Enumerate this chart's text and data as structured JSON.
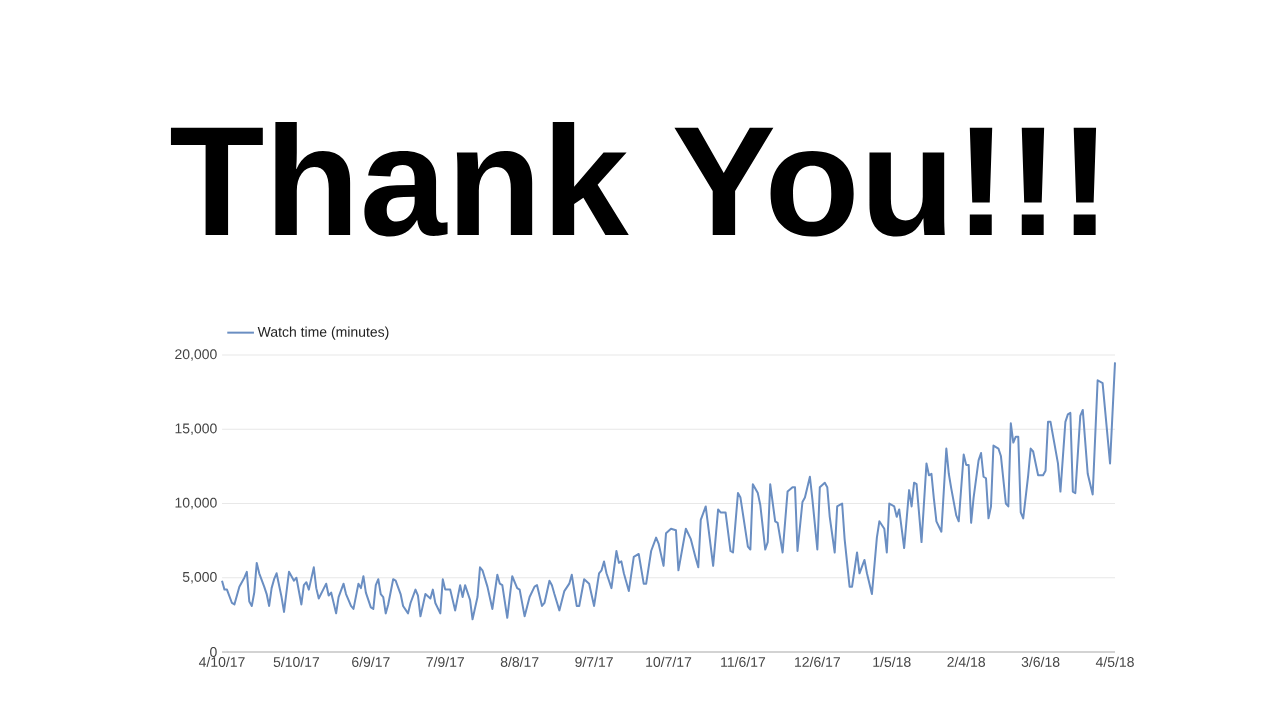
{
  "chart_data": {
    "type": "line",
    "title": "Thank You!!!",
    "xlim": [
      "2017-04-10",
      "2018-04-05"
    ],
    "xticks": [
      {
        "value": "2017-04-10",
        "label": "4/10/17"
      },
      {
        "value": "2017-05-10",
        "label": "5/10/17"
      },
      {
        "value": "2017-06-09",
        "label": "6/9/17"
      },
      {
        "value": "2017-07-09",
        "label": "7/9/17"
      },
      {
        "value": "2017-08-08",
        "label": "8/8/17"
      },
      {
        "value": "2017-09-07",
        "label": "9/7/17"
      },
      {
        "value": "2017-10-07",
        "label": "10/7/17"
      },
      {
        "value": "2017-11-06",
        "label": "11/6/17"
      },
      {
        "value": "2017-12-06",
        "label": "12/6/17"
      },
      {
        "value": "2018-01-05",
        "label": "1/5/18"
      },
      {
        "value": "2018-02-04",
        "label": "2/4/18"
      },
      {
        "value": "2018-03-06",
        "label": "3/6/18"
      },
      {
        "value": "2018-04-05",
        "label": "4/5/18"
      }
    ],
    "ylim": [
      0,
      20000
    ],
    "yticks": [
      0,
      {
        "value": 5000,
        "label": "5,000"
      },
      {
        "value": 10000,
        "label": "10,000"
      },
      {
        "value": 15000,
        "label": "15,000"
      },
      {
        "value": 20000,
        "label": "20,000"
      }
    ],
    "grid": "y",
    "legend": "top left",
    "x": [
      "2017-04-10",
      "2017-04-11",
      "2017-04-12",
      "2017-04-14",
      "2017-04-15",
      "2017-04-17",
      "2017-04-19",
      "2017-04-20",
      "2017-04-21",
      "2017-04-22",
      "2017-04-23",
      "2017-04-24",
      "2017-04-25",
      "2017-04-27",
      "2017-04-28",
      "2017-04-29",
      "2017-04-30",
      "2017-05-01",
      "2017-05-02",
      "2017-05-04",
      "2017-05-05",
      "2017-05-07",
      "2017-05-09",
      "2017-05-10",
      "2017-05-12",
      "2017-05-13",
      "2017-05-14",
      "2017-05-15",
      "2017-05-17",
      "2017-05-18",
      "2017-05-19",
      "2017-05-22",
      "2017-05-23",
      "2017-05-24",
      "2017-05-26",
      "2017-05-27",
      "2017-05-29",
      "2017-05-30",
      "2017-06-01",
      "2017-06-02",
      "2017-06-04",
      "2017-06-05",
      "2017-06-06",
      "2017-06-07",
      "2017-06-09",
      "2017-06-10",
      "2017-06-11",
      "2017-06-12",
      "2017-06-13",
      "2017-06-14",
      "2017-06-15",
      "2017-06-16",
      "2017-06-18",
      "2017-06-19",
      "2017-06-21",
      "2017-06-22",
      "2017-06-24",
      "2017-06-25",
      "2017-06-27",
      "2017-06-28",
      "2017-06-29",
      "2017-07-01",
      "2017-07-03",
      "2017-07-04",
      "2017-07-05",
      "2017-07-07",
      "2017-07-08",
      "2017-07-09",
      "2017-07-11",
      "2017-07-13",
      "2017-07-15",
      "2017-07-16",
      "2017-07-17",
      "2017-07-19",
      "2017-07-20",
      "2017-07-22",
      "2017-07-23",
      "2017-07-24",
      "2017-07-26",
      "2017-07-28",
      "2017-07-30",
      "2017-07-31",
      "2017-08-01",
      "2017-08-03",
      "2017-08-05",
      "2017-08-07",
      "2017-08-08",
      "2017-08-10",
      "2017-08-12",
      "2017-08-14",
      "2017-08-15",
      "2017-08-17",
      "2017-08-18",
      "2017-08-20",
      "2017-08-21",
      "2017-08-22",
      "2017-08-24",
      "2017-08-26",
      "2017-08-28",
      "2017-08-29",
      "2017-08-31",
      "2017-09-01",
      "2017-09-03",
      "2017-09-05",
      "2017-09-07",
      "2017-09-09",
      "2017-09-10",
      "2017-09-11",
      "2017-09-12",
      "2017-09-14",
      "2017-09-16",
      "2017-09-17",
      "2017-09-18",
      "2017-09-19",
      "2017-09-21",
      "2017-09-23",
      "2017-09-25",
      "2017-09-27",
      "2017-09-28",
      "2017-09-30",
      "2017-10-02",
      "2017-10-03",
      "2017-10-05",
      "2017-10-06",
      "2017-10-08",
      "2017-10-10",
      "2017-10-11",
      "2017-10-14",
      "2017-10-16",
      "2017-10-18",
      "2017-10-19",
      "2017-10-20",
      "2017-10-22",
      "2017-10-25",
      "2017-10-27",
      "2017-10-28",
      "2017-10-30",
      "2017-11-01",
      "2017-11-02",
      "2017-11-04",
      "2017-11-05",
      "2017-11-08",
      "2017-11-09",
      "2017-11-10",
      "2017-11-12",
      "2017-11-13",
      "2017-11-15",
      "2017-11-16",
      "2017-11-17",
      "2017-11-19",
      "2017-11-20",
      "2017-11-22",
      "2017-11-24",
      "2017-11-26",
      "2017-11-27",
      "2017-11-28",
      "2017-11-30",
      "2017-12-01",
      "2017-12-03",
      "2017-12-04",
      "2017-12-06",
      "2017-12-07",
      "2017-12-09",
      "2017-12-10",
      "2017-12-11",
      "2017-12-13",
      "2017-12-14",
      "2017-12-16",
      "2017-12-17",
      "2017-12-19",
      "2017-12-20",
      "2017-12-22",
      "2017-12-23",
      "2017-12-25",
      "2017-12-26",
      "2017-12-28",
      "2017-12-30",
      "2017-12-31",
      "2018-01-02",
      "2018-01-03",
      "2018-01-04",
      "2018-01-06",
      "2018-01-07",
      "2018-01-08",
      "2018-01-10",
      "2018-01-12",
      "2018-01-13",
      "2018-01-14",
      "2018-01-15",
      "2018-01-17",
      "2018-01-19",
      "2018-01-20",
      "2018-01-21",
      "2018-01-22",
      "2018-01-23",
      "2018-01-25",
      "2018-01-27",
      "2018-01-28",
      "2018-01-29",
      "2018-01-31",
      "2018-02-01",
      "2018-02-03",
      "2018-02-04",
      "2018-02-05",
      "2018-02-06",
      "2018-02-07",
      "2018-02-09",
      "2018-02-10",
      "2018-02-11",
      "2018-02-12",
      "2018-02-13",
      "2018-02-14",
      "2018-02-15",
      "2018-02-17",
      "2018-02-18",
      "2018-02-20",
      "2018-02-21",
      "2018-02-22",
      "2018-02-23",
      "2018-02-24",
      "2018-02-25",
      "2018-02-26",
      "2018-02-27",
      "2018-03-01",
      "2018-03-02",
      "2018-03-03",
      "2018-03-05",
      "2018-03-07",
      "2018-03-08",
      "2018-03-09",
      "2018-03-10",
      "2018-03-13",
      "2018-03-14",
      "2018-03-16",
      "2018-03-17",
      "2018-03-18",
      "2018-03-19",
      "2018-03-20",
      "2018-03-22",
      "2018-03-23",
      "2018-03-25",
      "2018-03-27",
      "2018-03-29",
      "2018-03-31",
      "2018-04-03",
      "2018-04-05"
    ],
    "series": [
      {
        "name": "Watch time (minutes)",
        "color": "#6a8ec2",
        "values": [
          4800,
          4200,
          4200,
          3300,
          3200,
          4400,
          5000,
          5400,
          3400,
          3100,
          4000,
          6000,
          5300,
          4400,
          3900,
          3100,
          4300,
          4900,
          5300,
          3700,
          2700,
          5400,
          4800,
          5000,
          3200,
          4500,
          4700,
          4200,
          5700,
          4300,
          3600,
          4600,
          3800,
          4000,
          2600,
          3700,
          4600,
          3900,
          3100,
          2900,
          4600,
          4300,
          5100,
          4000,
          3000,
          2900,
          4500,
          4900,
          3900,
          3700,
          2600,
          3200,
          4900,
          4800,
          3900,
          3100,
          2600,
          3300,
          4200,
          3800,
          2400,
          3900,
          3600,
          4200,
          3300,
          2600,
          4900,
          4200,
          4200,
          2800,
          4500,
          3700,
          4500,
          3500,
          2200,
          3700,
          5700,
          5500,
          4400,
          2900,
          5200,
          4600,
          4500,
          2300,
          5100,
          4300,
          4200,
          2400,
          3700,
          4400,
          4500,
          3100,
          3300,
          4800,
          4500,
          3900,
          2800,
          4100,
          4600,
          5200,
          3100,
          3100,
          4900,
          4600,
          3100,
          5300,
          5500,
          6100,
          5300,
          4300,
          6800,
          6000,
          6100,
          5300,
          4100,
          6400,
          6600,
          4600,
          4600,
          6800,
          7700,
          7300,
          5800,
          8000,
          8300,
          8200,
          5500,
          8300,
          7600,
          6300,
          5700,
          8900,
          9800,
          5800,
          9600,
          9400,
          9400,
          6800,
          6700,
          10700,
          10400,
          7100,
          6900,
          11300,
          10700,
          9900,
          6900,
          7400,
          11300,
          8800,
          8700,
          6700,
          10800,
          11100,
          11100,
          6800,
          10100,
          10400,
          11800,
          10300,
          6900,
          11100,
          11400,
          11100,
          9100,
          6700,
          9800,
          10000,
          7600,
          4400,
          4400,
          6700,
          5300,
          6200,
          5300,
          3900,
          7700,
          8800,
          8300,
          6700,
          10000,
          9800,
          9100,
          9600,
          7000,
          10900,
          9800,
          11400,
          11300,
          7400,
          12700,
          11900,
          12000,
          10300,
          8800,
          8100,
          13700,
          12000,
          11000,
          9200,
          8800,
          13300,
          12600,
          12600,
          8700,
          10400,
          12900,
          13400,
          11800,
          11700,
          9000,
          9800,
          13900,
          13700,
          13200,
          10000,
          9800,
          15400,
          14100,
          14500,
          14500,
          9400,
          9000,
          11900,
          13700,
          13500,
          11900,
          11900,
          12200,
          15500,
          15500,
          12700,
          10800,
          15500,
          16000,
          16100,
          10800,
          10700,
          15900,
          16300,
          12000,
          10600,
          18300,
          18100,
          12700,
          19500
        ]
      }
    ]
  }
}
